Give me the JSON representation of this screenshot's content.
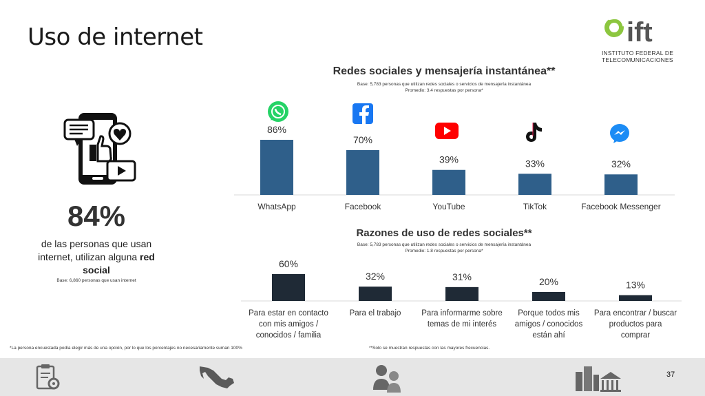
{
  "page": {
    "title": "Uso de internet",
    "page_number": "37",
    "footnote_left": "*La persona encuestada podía elegir más de una opción, por lo que los porcentajes no necesariamente suman 100%",
    "footnote_right": "**Solo se muestran respuestas con las mayores frecuencias."
  },
  "logo": {
    "text": "ift",
    "line1": "INSTITUTO FEDERAL DE",
    "line2": "TELECOMUNICACIONES"
  },
  "highlight": {
    "percent": "84%",
    "line1": "de las personas que usan",
    "line2_prefix": "internet, utilizan alguna ",
    "line2_bold": "red",
    "line3_bold": "social",
    "base": "Base: 6,860 personas que usan internet"
  },
  "colors": {
    "bar_top": "#2f5f8a",
    "bar_bottom": "#1f2a36",
    "footer": "#e6e6e6",
    "whatsapp": "#25d366",
    "facebook": "#1877f2",
    "youtube": "#ff0000",
    "messenger": "#1c8cf5"
  },
  "chart_data": [
    {
      "type": "bar",
      "title": "Redes sociales y mensajería instantánea**",
      "base": "Base: 5,783 personas que utilizan redes sociales o servicios de mensajería instantánea",
      "average": "Promedio: 3.4 respuestas por persona*",
      "categories": [
        "WhatsApp",
        "Facebook",
        "YouTube",
        "TikTok",
        "Facebook Messenger"
      ],
      "values": [
        86,
        70,
        39,
        33,
        32
      ],
      "labels": [
        "86%",
        "70%",
        "39%",
        "33%",
        "32%"
      ],
      "icons": [
        "whatsapp-icon",
        "facebook-icon",
        "youtube-icon",
        "tiktok-icon",
        "messenger-icon"
      ],
      "ylim": [
        0,
        100
      ]
    },
    {
      "type": "bar",
      "title": "Razones de uso de redes sociales**",
      "base": "Base: 5,783 personas que utilizan redes sociales o servicios de mensajería instantánea",
      "average": "Promedio: 1.8 respuestas por persona*",
      "categories": [
        [
          "Para estar en contacto",
          "con mis amigos /",
          "conocidos / familia"
        ],
        [
          "Para el trabajo"
        ],
        [
          "Para informarme sobre",
          "temas de mi interés"
        ],
        [
          "Porque todos mis",
          "amigos / conocidos",
          "están ahí"
        ],
        [
          "Para encontrar / buscar",
          "productos para",
          "comprar"
        ]
      ],
      "values": [
        60,
        32,
        31,
        20,
        13
      ],
      "labels": [
        "60%",
        "32%",
        "31%",
        "20%",
        "13%"
      ],
      "ylim": [
        0,
        100
      ]
    }
  ],
  "footer_icons": [
    "clipboard-gear-icon",
    "mexico-map-icon",
    "people-icon",
    "city-buildings-icon"
  ]
}
